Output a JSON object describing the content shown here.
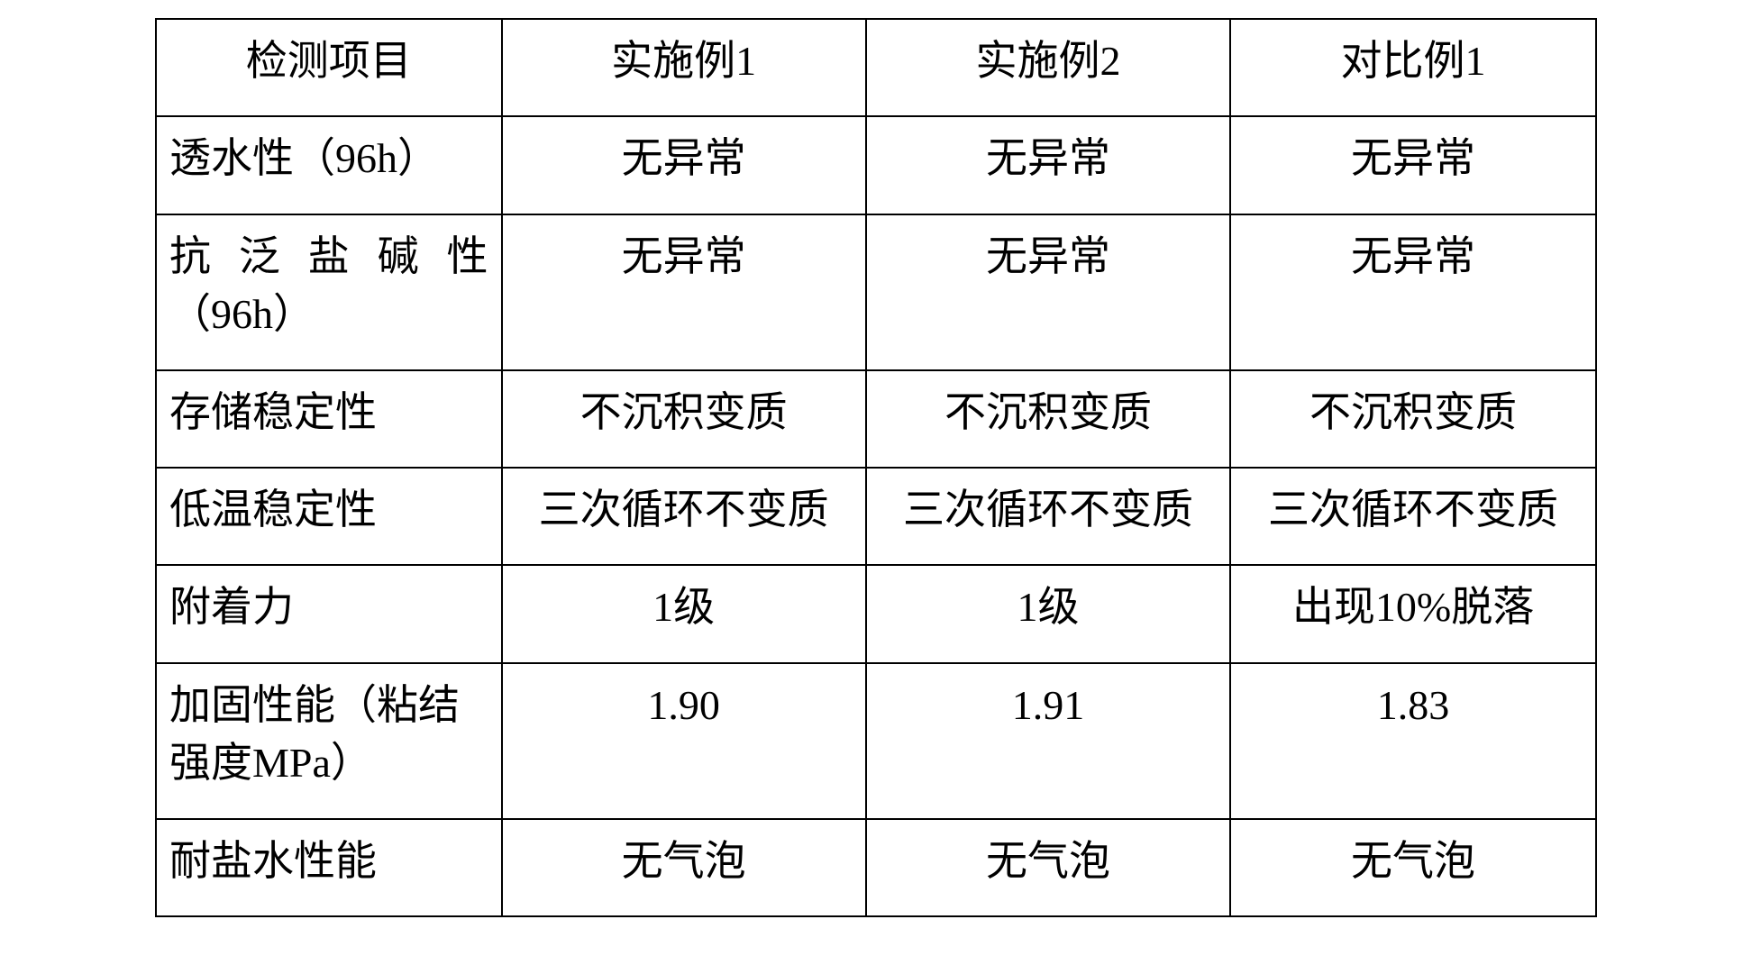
{
  "table": {
    "columns": [
      "检测项目",
      "实施例1",
      "实施例2",
      "对比例1"
    ],
    "rows": [
      {
        "label": "透水性（96h）",
        "values": [
          "无异常",
          "无异常",
          "无异常"
        ],
        "justify": false
      },
      {
        "label": "抗泛盐碱性",
        "sub": "（96h）",
        "values": [
          "无异常",
          "无异常",
          "无异常"
        ],
        "justify": true
      },
      {
        "label": "存储稳定性",
        "values": [
          "不沉积变质",
          "不沉积变质",
          "不沉积变质"
        ],
        "justify": false
      },
      {
        "label": "低温稳定性",
        "values": [
          "三次循环不变质",
          "三次循环不变质",
          "三次循环不变质"
        ],
        "justify": false
      },
      {
        "label": "附着力",
        "values": [
          "1级",
          "1级",
          "出现10%脱落"
        ],
        "justify": false
      },
      {
        "label": "加固性能（粘结",
        "sub": "强度MPa）",
        "values": [
          "1.90",
          "1.91",
          "1.83"
        ],
        "justify": false
      },
      {
        "label": "耐盐水性能",
        "values": [
          "无气泡",
          "无气泡",
          "无气泡"
        ],
        "justify": false
      }
    ],
    "border_color": "#000000",
    "background_color": "#ffffff",
    "text_color": "#000000",
    "font_family": "SimSun",
    "font_size_pt": 34,
    "column_widths_pct": [
      24,
      25.3,
      25.3,
      25.4
    ]
  }
}
